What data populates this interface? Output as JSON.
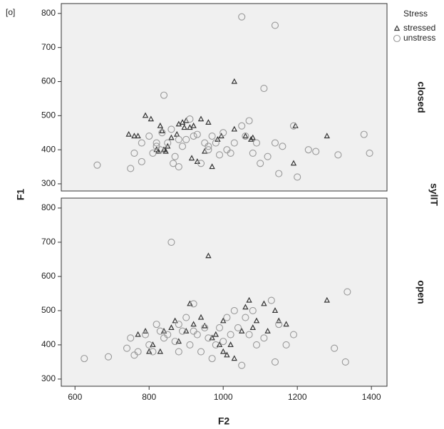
{
  "chart_data": {
    "type": "scatter",
    "corner_label": "[o]",
    "xlabel": "F2",
    "ylabel": "F1",
    "facet_title": "sylIT",
    "legend_title": "Stress",
    "facets": [
      "closed",
      "open"
    ],
    "xlim": [
      563,
      1442
    ],
    "xticks": [
      600,
      800,
      1000,
      1200,
      1400
    ],
    "ylim": [
      279,
      829
    ],
    "yticks": [
      300,
      400,
      500,
      600,
      700,
      800
    ],
    "series": [
      {
        "name": "stressed",
        "color": "#333333",
        "marker": "triangle",
        "x": [
          [
            745,
            760,
            770,
            790,
            805,
            820,
            830,
            835,
            840,
            845,
            850,
            860,
            875,
            880,
            890,
            895,
            900,
            910,
            915,
            920,
            930,
            940,
            950,
            960,
            970,
            985,
            995,
            1030,
            1030,
            1060,
            1075,
            1080,
            1190,
            1195,
            1280,
            825
          ],
          [
            770,
            790,
            800,
            810,
            830,
            840,
            860,
            870,
            880,
            900,
            910,
            920,
            940,
            950,
            960,
            970,
            980,
            990,
            1000,
            1010,
            1020,
            1050,
            1060,
            1070,
            1080,
            1090,
            1110,
            1120,
            1140,
            1150,
            1170,
            1280,
            1000,
            1030
          ]
        ],
        "y": [
          [
            445,
            440,
            440,
            500,
            490,
            400,
            470,
            455,
            400,
            395,
            410,
            435,
            445,
            475,
            480,
            465,
            485,
            465,
            375,
            470,
            365,
            490,
            395,
            480,
            350,
            430,
            440,
            460,
            600,
            440,
            430,
            435,
            360,
            470,
            440,
            395
          ],
          [
            430,
            440,
            380,
            400,
            380,
            440,
            450,
            470,
            410,
            440,
            520,
            460,
            480,
            455,
            660,
            420,
            430,
            400,
            380,
            370,
            400,
            440,
            510,
            530,
            450,
            470,
            520,
            440,
            500,
            470,
            460,
            530,
            470,
            360
          ]
        ]
      },
      {
        "name": "unstress",
        "color": "#999999",
        "marker": "circle",
        "x": [
          [
            660,
            750,
            760,
            780,
            780,
            800,
            810,
            820,
            830,
            835,
            840,
            850,
            860,
            865,
            870,
            880,
            890,
            900,
            910,
            920,
            930,
            940,
            950,
            960,
            970,
            980,
            990,
            1000,
            1010,
            1020,
            1030,
            1050,
            1050,
            1060,
            1070,
            1080,
            1090,
            1100,
            1110,
            1120,
            1140,
            1140,
            1150,
            1160,
            1190,
            1200,
            1230,
            1250,
            1310,
            1380,
            1395,
            820,
            880,
            960
          ],
          [
            625,
            690,
            740,
            750,
            760,
            770,
            790,
            800,
            810,
            820,
            830,
            840,
            850,
            860,
            870,
            880,
            890,
            900,
            910,
            920,
            930,
            940,
            950,
            960,
            970,
            980,
            990,
            1000,
            1010,
            1020,
            1030,
            1040,
            1050,
            1060,
            1070,
            1080,
            1090,
            1110,
            1130,
            1140,
            1150,
            1170,
            1190,
            1300,
            1330,
            1335,
            880,
            920
          ]
        ],
        "y": [
          [
            355,
            345,
            390,
            365,
            420,
            440,
            390,
            410,
            400,
            450,
            560,
            420,
            460,
            360,
            380,
            350,
            410,
            430,
            490,
            440,
            445,
            360,
            420,
            410,
            440,
            420,
            385,
            450,
            400,
            390,
            420,
            470,
            790,
            440,
            485,
            390,
            420,
            360,
            580,
            380,
            765,
            420,
            330,
            410,
            470,
            320,
            400,
            395,
            385,
            445,
            390,
            420,
            430,
            400
          ],
          [
            360,
            365,
            390,
            420,
            370,
            380,
            430,
            400,
            380,
            460,
            440,
            420,
            430,
            700,
            410,
            460,
            440,
            480,
            400,
            520,
            430,
            380,
            450,
            420,
            360,
            400,
            450,
            410,
            480,
            430,
            500,
            450,
            340,
            480,
            430,
            500,
            400,
            420,
            530,
            350,
            460,
            400,
            430,
            390,
            350,
            555,
            380,
            440
          ]
        ]
      }
    ]
  }
}
